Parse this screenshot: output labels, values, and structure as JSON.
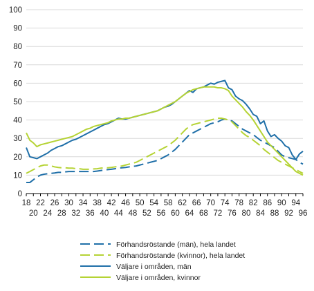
{
  "chart_data": {
    "type": "line",
    "title": "",
    "xlabel": "",
    "ylabel": "",
    "ylim": [
      0,
      100
    ],
    "yticks": [
      0,
      10,
      20,
      30,
      40,
      50,
      60,
      70,
      80,
      90,
      100
    ],
    "xlim": [
      18,
      96
    ],
    "xticks_top_row": [
      "18",
      "22",
      "26",
      "30",
      "34",
      "38",
      "42",
      "46",
      "50",
      "54",
      "58",
      "62",
      "66",
      "70",
      "74",
      "78",
      "82",
      "86",
      "90",
      "94"
    ],
    "xticks_bottom_row": [
      "20",
      "24",
      "28",
      "32",
      "36",
      "40",
      "44",
      "48",
      "52",
      "56",
      "60",
      "64",
      "68",
      "72",
      "76",
      "80",
      "84",
      "88",
      "92",
      "96"
    ],
    "grid": "horizontal",
    "legend_position": "bottom",
    "series": [
      {
        "name": "Förhandsröstande (män), hela landet",
        "color": "#1f6fa8",
        "dash": true,
        "x": [
          18,
          19,
          20,
          21,
          22,
          23,
          24,
          25,
          26,
          27,
          28,
          29,
          30,
          31,
          32,
          33,
          34,
          35,
          36,
          37,
          38,
          39,
          40,
          41,
          42,
          43,
          44,
          45,
          46,
          47,
          48,
          49,
          50,
          51,
          52,
          53,
          54,
          55,
          56,
          57,
          58,
          59,
          60,
          61,
          62,
          63,
          64,
          65,
          66,
          67,
          68,
          69,
          70,
          71,
          72,
          73,
          74,
          75,
          76,
          77,
          78,
          79,
          80,
          81,
          82,
          83,
          84,
          85,
          86,
          87,
          88,
          89,
          90,
          91,
          92,
          93,
          94,
          95,
          96
        ],
        "values": [
          6,
          6,
          7.5,
          9,
          10,
          10.5,
          10.8,
          11,
          11.2,
          11.5,
          11.5,
          11.8,
          12,
          12,
          12,
          12,
          12,
          12,
          12,
          12,
          12.2,
          12.5,
          12.8,
          13,
          13.2,
          13.5,
          13.8,
          14,
          14.2,
          14.5,
          14.8,
          15,
          15.5,
          16,
          16.5,
          17,
          17.5,
          18,
          19,
          20,
          21,
          22.5,
          24,
          26,
          28,
          30,
          32,
          33,
          34,
          35,
          36,
          37,
          38,
          38.5,
          39,
          40,
          40.5,
          40,
          39.5,
          38,
          36.5,
          35,
          34,
          33,
          32,
          30.5,
          29,
          28,
          27,
          26,
          25,
          23,
          21,
          20,
          19.5,
          19,
          18.5,
          17,
          16
        ]
      },
      {
        "name": "Förhandsröstande (kvinnor), hela landet",
        "color": "#b5d334",
        "dash": true,
        "x": [
          18,
          19,
          20,
          21,
          22,
          23,
          24,
          25,
          26,
          27,
          28,
          29,
          30,
          31,
          32,
          33,
          34,
          35,
          36,
          37,
          38,
          39,
          40,
          41,
          42,
          43,
          44,
          45,
          46,
          47,
          48,
          49,
          50,
          51,
          52,
          53,
          54,
          55,
          56,
          57,
          58,
          59,
          60,
          61,
          62,
          63,
          64,
          65,
          66,
          67,
          68,
          69,
          70,
          71,
          72,
          73,
          74,
          75,
          76,
          77,
          78,
          79,
          80,
          81,
          82,
          83,
          84,
          85,
          86,
          87,
          88,
          89,
          90,
          91,
          92,
          93,
          94,
          95,
          96
        ],
        "values": [
          11,
          12,
          13,
          14,
          15,
          15.5,
          15.5,
          15,
          14.5,
          14.2,
          14,
          14,
          13.8,
          13.8,
          13.5,
          13.5,
          13.2,
          13.2,
          13.2,
          13.4,
          13.5,
          13.8,
          14,
          14,
          14.2,
          14.5,
          14.8,
          15,
          15.5,
          16,
          16.5,
          17,
          18,
          19,
          20,
          21,
          22,
          23,
          24,
          25,
          26,
          27.5,
          29,
          31,
          33,
          35,
          36.5,
          37.5,
          38,
          38.5,
          39,
          39.5,
          40,
          40.5,
          41,
          41,
          40.5,
          40,
          39,
          37,
          35,
          33,
          31.5,
          30.5,
          29,
          27.5,
          26,
          24,
          22.5,
          21,
          19.5,
          18,
          17,
          16,
          15,
          14,
          13,
          12,
          11
        ]
      },
      {
        "name": "Väljare i områden, män",
        "color": "#1f6fa8",
        "dash": false,
        "x": [
          18,
          19,
          20,
          21,
          22,
          23,
          24,
          25,
          26,
          27,
          28,
          29,
          30,
          31,
          32,
          33,
          34,
          35,
          36,
          37,
          38,
          39,
          40,
          41,
          42,
          43,
          44,
          45,
          46,
          47,
          48,
          49,
          50,
          51,
          52,
          53,
          54,
          55,
          56,
          57,
          58,
          59,
          60,
          61,
          62,
          63,
          64,
          65,
          66,
          67,
          68,
          69,
          70,
          71,
          72,
          73,
          74,
          75,
          76,
          77,
          78,
          79,
          80,
          81,
          82,
          83,
          84,
          85,
          86,
          87,
          88,
          89,
          90,
          91,
          92,
          93,
          94,
          95,
          96
        ],
        "values": [
          25,
          20,
          19.5,
          19,
          20,
          21,
          22,
          23.5,
          24.5,
          25.5,
          26,
          27,
          28,
          29,
          29.5,
          30.5,
          31.5,
          32.5,
          33.5,
          34.5,
          35.5,
          36.5,
          37.5,
          38,
          39,
          40,
          41,
          40.5,
          40.5,
          41,
          41.5,
          42,
          42.5,
          43,
          43.5,
          44,
          44.5,
          45,
          46,
          47,
          47.5,
          48.5,
          50,
          51.5,
          53,
          54.5,
          56,
          55,
          57,
          57.5,
          58,
          59,
          60,
          59.5,
          60.5,
          61,
          61.5,
          57.5,
          56.5,
          53,
          51.5,
          50.5,
          48.5,
          46,
          43,
          42,
          38,
          39.5,
          34,
          31,
          32,
          30,
          28.5,
          26,
          25,
          21,
          18.5,
          21.5,
          23
        ]
      },
      {
        "name": "Väljare i områden, kvinnor",
        "color": "#b5d334",
        "dash": false,
        "x": [
          18,
          19,
          20,
          21,
          22,
          23,
          24,
          25,
          26,
          27,
          28,
          29,
          30,
          31,
          32,
          33,
          34,
          35,
          36,
          37,
          38,
          39,
          40,
          41,
          42,
          43,
          44,
          45,
          46,
          47,
          48,
          49,
          50,
          51,
          52,
          53,
          54,
          55,
          56,
          57,
          58,
          59,
          60,
          61,
          62,
          63,
          64,
          65,
          66,
          67,
          68,
          69,
          70,
          71,
          72,
          73,
          74,
          75,
          76,
          77,
          78,
          79,
          80,
          81,
          82,
          83,
          84,
          85,
          86,
          87,
          88,
          89,
          90,
          91,
          92,
          93,
          94,
          95,
          96
        ],
        "values": [
          33,
          29,
          27.5,
          25.5,
          26.5,
          27,
          27.5,
          28,
          28.5,
          29,
          29.5,
          30,
          30.5,
          31,
          32,
          33,
          34,
          35,
          35.5,
          36.5,
          37,
          37.5,
          38,
          38.5,
          39.5,
          40,
          40.5,
          40.5,
          41,
          41,
          41.5,
          42,
          42.5,
          43,
          43.5,
          44,
          44.5,
          45,
          46,
          47,
          48,
          49,
          50,
          51.5,
          53,
          54.5,
          55.5,
          56.5,
          57,
          57.5,
          58,
          58,
          58,
          58,
          57.5,
          57.5,
          57,
          56,
          53,
          51,
          49,
          47,
          44.5,
          42.5,
          40,
          37,
          34,
          31,
          28,
          26,
          24,
          22,
          20,
          18,
          16,
          14,
          12,
          11,
          10
        ]
      }
    ]
  }
}
